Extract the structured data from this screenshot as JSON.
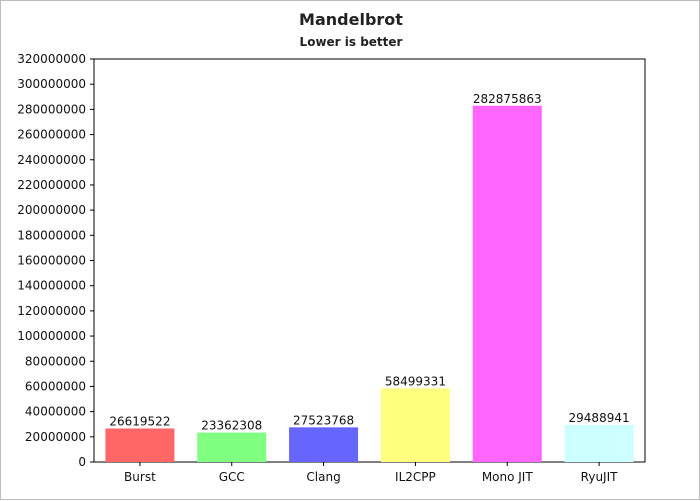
{
  "chart_data": {
    "type": "bar",
    "title": "Mandelbrot",
    "subtitle": "Lower is better",
    "categories": [
      "Burst",
      "GCC",
      "Clang",
      "IL2CPP",
      "Mono JIT",
      "RyuJIT"
    ],
    "values": [
      26619522,
      23362308,
      27523768,
      58499331,
      282875863,
      29488941
    ],
    "data_labels": [
      "26619522",
      "23362308",
      "27523768",
      "58499331",
      "282875863",
      "29488941"
    ],
    "colors": [
      "#ff6666",
      "#80ff80",
      "#6666ff",
      "#ffff80",
      "#ff66ff",
      "#ccffff"
    ],
    "ylim": [
      0,
      320000000
    ],
    "yticks": [
      0,
      20000000,
      40000000,
      60000000,
      80000000,
      100000000,
      120000000,
      140000000,
      160000000,
      180000000,
      200000000,
      220000000,
      240000000,
      260000000,
      280000000,
      300000000,
      320000000
    ],
    "ytick_labels": [
      "0",
      "20000000",
      "40000000",
      "60000000",
      "80000000",
      "100000000",
      "120000000",
      "140000000",
      "160000000",
      "180000000",
      "200000000",
      "220000000",
      "240000000",
      "260000000",
      "280000000",
      "300000000",
      "320000000"
    ],
    "grid": false,
    "legend": "none"
  }
}
